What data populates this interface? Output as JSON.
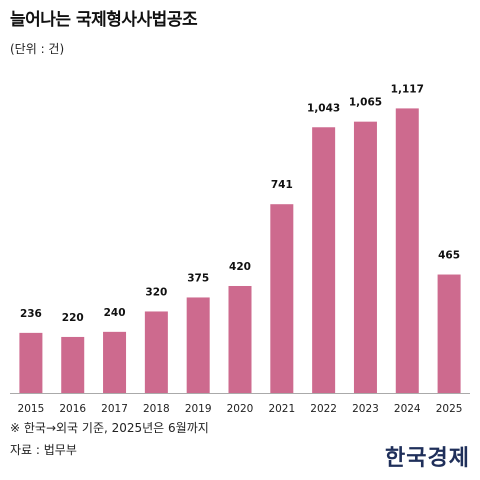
{
  "header": {
    "title": "늘어나는 국제형사사법공조",
    "unit": "(단위 : 건)"
  },
  "footer": {
    "note": "※ 한국→외국 기준, 2025년은 6월까지",
    "source": "자료 : 법무부",
    "logo": "한국경제"
  },
  "colors": {
    "bar": "#cd6a8e",
    "axis": "#aaaaaa"
  },
  "chart_data": {
    "type": "bar",
    "categories": [
      "2015",
      "2016",
      "2017",
      "2018",
      "2019",
      "2020",
      "2021",
      "2022",
      "2023",
      "2024",
      "2025"
    ],
    "values": [
      236,
      220,
      240,
      320,
      375,
      420,
      741,
      1043,
      1065,
      1117,
      465
    ],
    "value_labels": [
      "236",
      "220",
      "240",
      "320",
      "375",
      "420",
      "741",
      "1,043",
      "1,065",
      "1,117",
      "465"
    ],
    "title": "늘어나는 국제형사사법공조",
    "xlabel": "",
    "ylabel": "",
    "ylim": [
      0,
      1150
    ],
    "grid": false
  }
}
